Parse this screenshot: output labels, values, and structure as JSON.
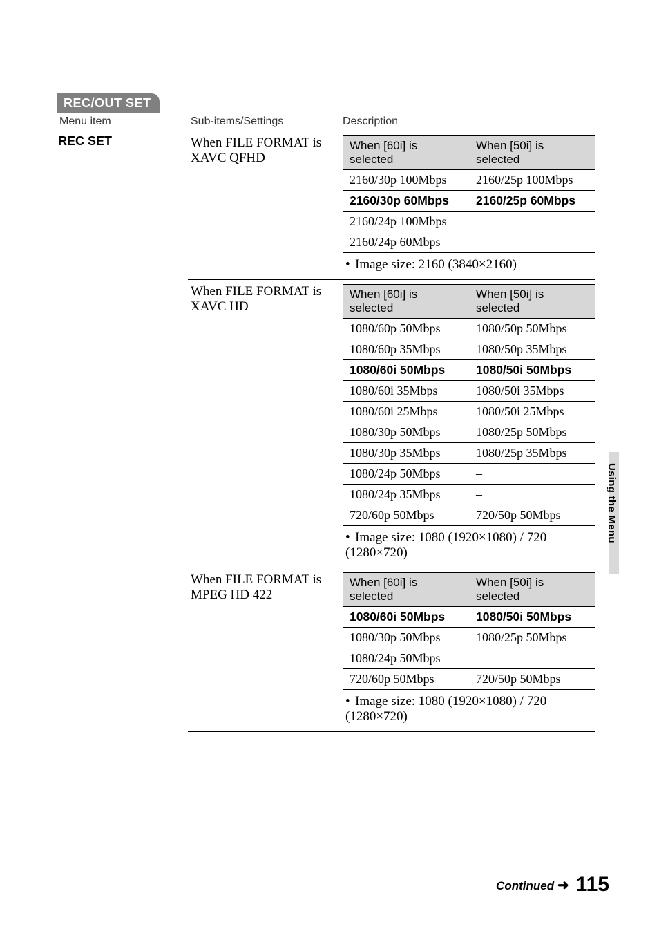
{
  "section_tag": "REC/OUT SET",
  "headers": {
    "menu": "Menu item",
    "sub": "Sub-items/Settings",
    "desc": "Description"
  },
  "menu_item": "REC SET",
  "blocks": [
    {
      "subitem": "When FILE FORMAT is XAVC QFHD",
      "inner_headers": {
        "left": "When [60i] is selected",
        "right": "When [50i] is selected"
      },
      "rows": [
        {
          "l": "2160/30p 100Mbps",
          "r": "2160/25p 100Mbps",
          "bold": false
        },
        {
          "l": "2160/30p 60Mbps",
          "r": "2160/25p 60Mbps",
          "bold": true
        },
        {
          "l": "2160/24p 100Mbps",
          "r": "",
          "bold": false
        },
        {
          "l": "2160/24p 60Mbps",
          "r": "",
          "bold": false
        }
      ],
      "note": "Image size: 2160 (3840×2160)"
    },
    {
      "subitem": "When FILE FORMAT is XAVC HD",
      "inner_headers": {
        "left": "When [60i] is selected",
        "right": "When [50i] is selected"
      },
      "rows": [
        {
          "l": "1080/60p 50Mbps",
          "r": "1080/50p 50Mbps",
          "bold": false
        },
        {
          "l": "1080/60p 35Mbps",
          "r": "1080/50p 35Mbps",
          "bold": false
        },
        {
          "l": "1080/60i 50Mbps",
          "r": "1080/50i 50Mbps",
          "bold": true
        },
        {
          "l": "1080/60i 35Mbps",
          "r": "1080/50i 35Mbps",
          "bold": false
        },
        {
          "l": "1080/60i 25Mbps",
          "r": "1080/50i 25Mbps",
          "bold": false
        },
        {
          "l": "1080/30p 50Mbps",
          "r": "1080/25p 50Mbps",
          "bold": false
        },
        {
          "l": "1080/30p 35Mbps",
          "r": "1080/25p 35Mbps",
          "bold": false
        },
        {
          "l": "1080/24p 50Mbps",
          "r": "–",
          "bold": false
        },
        {
          "l": "1080/24p 35Mbps",
          "r": "–",
          "bold": false
        },
        {
          "l": "720/60p 50Mbps",
          "r": "720/50p 50Mbps",
          "bold": false
        }
      ],
      "note": "Image size: 1080 (1920×1080) / 720 (1280×720)"
    },
    {
      "subitem": "When FILE FORMAT is MPEG HD 422",
      "inner_headers": {
        "left": "When [60i] is selected",
        "right": "When [50i] is selected"
      },
      "rows": [
        {
          "l": "1080/60i 50Mbps",
          "r": "1080/50i 50Mbps",
          "bold": true
        },
        {
          "l": "1080/30p 50Mbps",
          "r": "1080/25p 50Mbps",
          "bold": false
        },
        {
          "l": "1080/24p 50Mbps",
          "r": "–",
          "bold": false
        },
        {
          "l": "720/60p 50Mbps",
          "r": "720/50p 50Mbps",
          "bold": false
        }
      ],
      "note": "Image size: 1080 (1920×1080) / 720 (1280×720)"
    }
  ],
  "side_tab": "Using the Menu",
  "footer": {
    "continued": "Continued",
    "arrow": "➜",
    "page": "115"
  },
  "colors": {
    "tag_bg": "#808080",
    "tag_fg": "#ffffff",
    "header_bg": "#d7d7d7",
    "side_bg": "#d9d9d9"
  }
}
